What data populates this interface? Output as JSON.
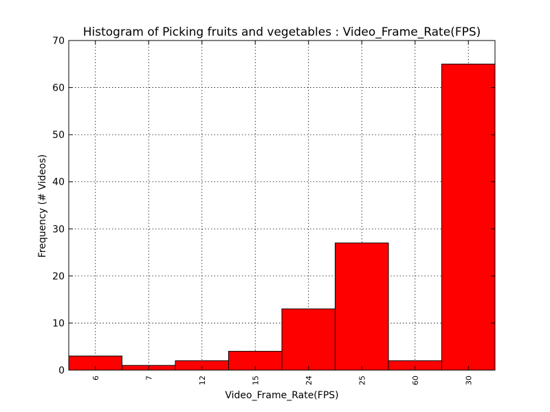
{
  "chart_data": {
    "type": "bar",
    "title": "Histogram of Picking fruits and vegetables : Video_Frame_Rate(FPS)",
    "xlabel": "Video_Frame_Rate(FPS)",
    "ylabel": "Frequency (# Videos)",
    "categories": [
      "6",
      "7",
      "12",
      "15",
      "24",
      "25",
      "60",
      "30"
    ],
    "values": [
      3,
      1,
      2,
      4,
      13,
      27,
      2,
      65
    ],
    "ylim": [
      0,
      70
    ],
    "yticks": [
      0,
      10,
      20,
      30,
      40,
      50,
      60,
      70
    ],
    "grid": true,
    "bar_color": "#ff0000"
  }
}
